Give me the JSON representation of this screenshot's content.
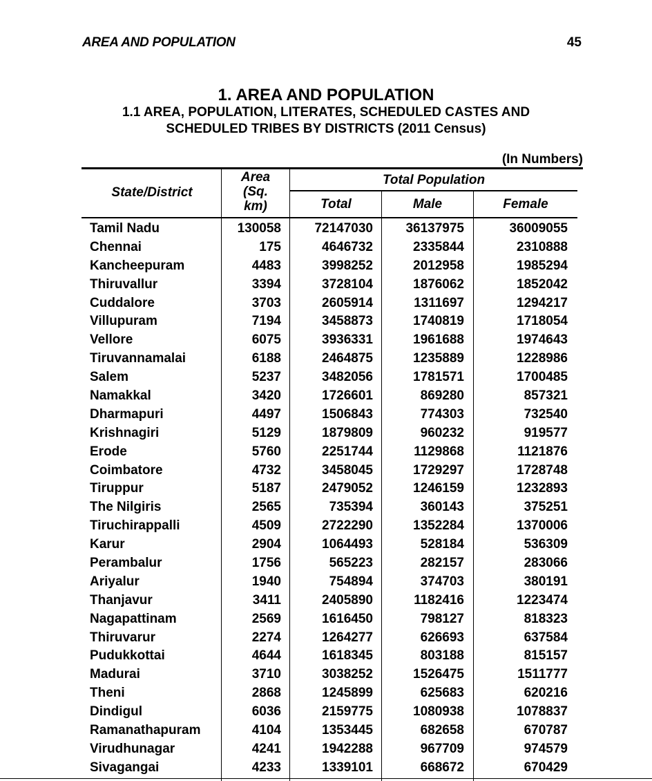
{
  "header": {
    "section": "AREA AND POPULATION",
    "page_number": "45"
  },
  "title": {
    "main": "1. AREA AND POPULATION",
    "sub_line1": "1.1  AREA, POPULATION, LITERATES, SCHEDULED CASTES AND",
    "sub_line2": "SCHEDULED TRIBES BY DISTRICTS (2011 Census)"
  },
  "units": "(In Numbers)",
  "table": {
    "headers": {
      "district": "State/District",
      "area_line1": "Area",
      "area_line2": "(Sq.",
      "area_line3": "km)",
      "total_population": "Total Population",
      "total": "Total",
      "male": "Male",
      "female": "Female"
    },
    "rows": [
      [
        "Tamil Nadu",
        "130058",
        "72147030",
        "36137975",
        "36009055"
      ],
      [
        "Chennai",
        "175",
        "4646732",
        "2335844",
        "2310888"
      ],
      [
        "Kancheepuram",
        "4483",
        "3998252",
        "2012958",
        "1985294"
      ],
      [
        "Thiruvallur",
        "3394",
        "3728104",
        "1876062",
        "1852042"
      ],
      [
        "Cuddalore",
        "3703",
        "2605914",
        "1311697",
        "1294217"
      ],
      [
        "Villupuram",
        "7194",
        "3458873",
        "1740819",
        "1718054"
      ],
      [
        "Vellore",
        "6075",
        "3936331",
        "1961688",
        "1974643"
      ],
      [
        "Tiruvannamalai",
        "6188",
        "2464875",
        "1235889",
        "1228986"
      ],
      [
        "Salem",
        "5237",
        "3482056",
        "1781571",
        "1700485"
      ],
      [
        "Namakkal",
        "3420",
        "1726601",
        "869280",
        "857321"
      ],
      [
        "Dharmapuri",
        "4497",
        "1506843",
        "774303",
        "732540"
      ],
      [
        "Krishnagiri",
        "5129",
        "1879809",
        "960232",
        "919577"
      ],
      [
        "Erode",
        "5760",
        "2251744",
        "1129868",
        "1121876"
      ],
      [
        "Coimbatore",
        "4732",
        "3458045",
        "1729297",
        "1728748"
      ],
      [
        "Tiruppur",
        "5187",
        "2479052",
        "1246159",
        "1232893"
      ],
      [
        "The Nilgiris",
        "2565",
        "735394",
        "360143",
        "375251"
      ],
      [
        "Tiruchirappalli",
        "4509",
        "2722290",
        "1352284",
        "1370006"
      ],
      [
        "Karur",
        "2904",
        "1064493",
        "528184",
        "536309"
      ],
      [
        "Perambalur",
        "1756",
        "565223",
        "282157",
        "283066"
      ],
      [
        "Ariyalur",
        "1940",
        "754894",
        "374703",
        "380191"
      ],
      [
        "Thanjavur",
        "3411",
        "2405890",
        "1182416",
        "1223474"
      ],
      [
        "Nagapattinam",
        "2569",
        "1616450",
        "798127",
        "818323"
      ],
      [
        "Thiruvarur",
        "2274",
        "1264277",
        "626693",
        "637584"
      ],
      [
        "Pudukkottai",
        "4644",
        "1618345",
        "803188",
        "815157"
      ],
      [
        "Madurai",
        "3710",
        "3038252",
        "1526475",
        "1511777"
      ],
      [
        "Theni",
        "2868",
        "1245899",
        "625683",
        "620216"
      ],
      [
        "Dindigul",
        "6036",
        "2159775",
        "1080938",
        "1078837"
      ],
      [
        "Ramanathapuram",
        "4104",
        "1353445",
        "682658",
        "670787"
      ],
      [
        "Virudhunagar",
        "4241",
        "1942288",
        "967709",
        "974579"
      ],
      [
        "Sivagangai",
        "4233",
        "1339101",
        "668672",
        "670429"
      ]
    ]
  }
}
